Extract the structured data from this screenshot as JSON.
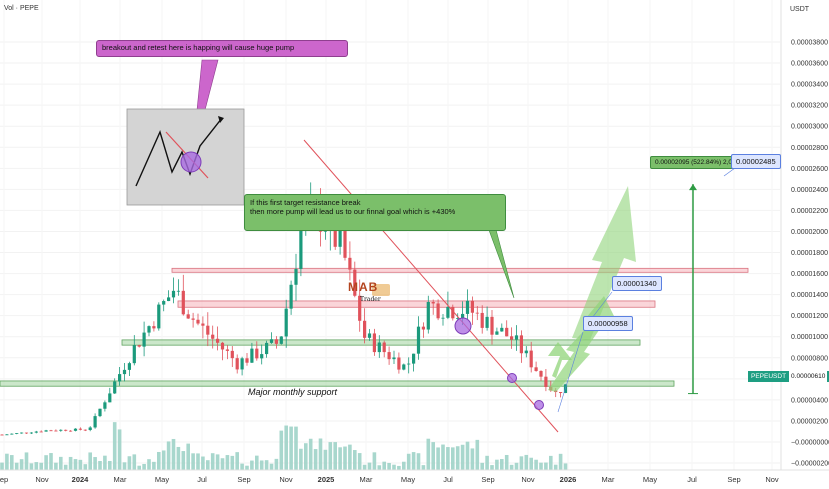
{
  "header": {
    "title": "Vol · PEPE",
    "currency": "USDT"
  },
  "price_axis": {
    "labels": [
      "0.00003800",
      "0.00003600",
      "0.00003400",
      "0.00003200",
      "0.00003000",
      "0.00002800",
      "0.00002600",
      "0.00002400",
      "0.00002200",
      "0.00002000",
      "0.00001800",
      "0.00001600",
      "0.00001400",
      "0.00001200",
      "0.00001000",
      "0.00000800",
      "0.00000600",
      "0.00000400",
      "0.00000200",
      "−0.00000000",
      "−0.00000200"
    ],
    "current_tag": "PEPEUSDT",
    "current_value": "0.00000610",
    "current_color": "#1e9e82"
  },
  "time_axis": [
    "ep",
    "Nov",
    "2024",
    "Mar",
    "May",
    "Jul",
    "Sep",
    "Nov",
    "2025",
    "Mar",
    "May",
    "Jul",
    "Sep",
    "Nov",
    "2026",
    "Mar",
    "May",
    "Jul",
    "Sep",
    "Nov"
  ],
  "annotations": {
    "callout": "breakout and retest here is happing will cause huge pump",
    "target_text_line1": "If this first target resistance break",
    "target_text_line2": "then more pump will lead us to our finnal goal which is +430%",
    "support_label": "Major monthly support",
    "target_stats": "0.00002095 (522.84%) 2,095",
    "final_price": "0.00002485",
    "price_1": "0.00001340",
    "price_2": "0.00000958",
    "logo_letters": "MAB",
    "logo_sub": "Trader"
  },
  "colors": {
    "up": "#1b9a7c",
    "down": "#e0525b",
    "volume": "#9ed3c8",
    "support_zone": "#a9d7a6",
    "resistance_zone": "#f6b9bf",
    "callout_bg": "#cc66cc",
    "target_bg": "#7bbf6a",
    "arrow_green": "#90d47a"
  },
  "chart_data": {
    "type": "candlestick",
    "symbol": "PEPEUSDT",
    "interval": "weekly",
    "y_unit": "USDT",
    "ylim": [
      -2e-06,
      3.95e-05
    ],
    "x_range": [
      "2023-09",
      "2026-12"
    ],
    "close_series_approx": [
      {
        "date": "2023-09",
        "close": 7e-07
      },
      {
        "date": "2023-11",
        "close": 1.1e-06
      },
      {
        "date": "2024-01",
        "close": 1.2e-06
      },
      {
        "date": "2024-03",
        "close": 8.5e-06
      },
      {
        "date": "2024-05",
        "close": 1.45e-05
      },
      {
        "date": "2024-06",
        "close": 1.15e-05
      },
      {
        "date": "2024-08",
        "close": 7.5e-06
      },
      {
        "date": "2024-10",
        "close": 9.5e-06
      },
      {
        "date": "2024-11",
        "close": 2e-05
      },
      {
        "date": "2024-12",
        "close": 2.15e-05
      },
      {
        "date": "2025-01",
        "close": 1.8e-05
      },
      {
        "date": "2025-02",
        "close": 1e-05
      },
      {
        "date": "2025-04",
        "close": 7e-06
      },
      {
        "date": "2025-05",
        "close": 1.3e-05
      },
      {
        "date": "2025-07",
        "close": 1.25e-05
      },
      {
        "date": "2025-08",
        "close": 1.1e-05
      },
      {
        "date": "2025-09",
        "close": 9.8e-06
      },
      {
        "date": "2025-10",
        "close": 7.2e-06
      },
      {
        "date": "2025-11",
        "close": 4.6e-06
      },
      {
        "date": "2025-12",
        "close": 6.1e-06
      }
    ],
    "zones": [
      {
        "name": "support",
        "low": 5.3e-06,
        "high": 5.8e-06
      },
      {
        "name": "support-2",
        "low": 9.2e-06,
        "high": 9.7e-06
      },
      {
        "name": "resistance-1",
        "low": 1.28e-05,
        "high": 1.34e-05
      },
      {
        "name": "resistance-2",
        "low": 1.62e-05,
        "high": 1.65e-05
      }
    ],
    "targets": [
      9.58e-06,
      1.34e-05,
      2.485e-05
    ],
    "current_price": 6.1e-06
  }
}
